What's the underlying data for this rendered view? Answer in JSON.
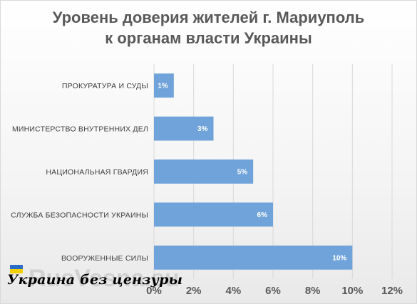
{
  "title_lines": [
    "Уровень доверия жителей г. Мариуполь",
    "к органам власти Украины"
  ],
  "chart_data": {
    "type": "bar",
    "orientation": "horizontal",
    "categories": [
      "ПРОКУРАТУРА И СУДЫ",
      "МИНИСТЕРСТВО ВНУТРЕННИХ ДЕЛ",
      "НАЦИОНАЛЬНАЯ ГВАРДИЯ",
      "СЛУЖБА БЕЗОПАСНОСТИ УКРАИНЫ",
      "ВООРУЖЕННЫЕ СИЛЫ"
    ],
    "values": [
      1,
      3,
      5,
      6,
      10
    ],
    "data_labels": [
      "1%",
      "3%",
      "5%",
      "6%",
      "10%"
    ],
    "xlim": [
      0,
      12
    ],
    "xticks": [
      "0%",
      "2%",
      "4%",
      "6%",
      "8%",
      "10%",
      "12%"
    ],
    "grid": true,
    "bar_color": "#6fa3d9",
    "grid_color": "#d9d9d9"
  },
  "watermark": "RusVesna.su",
  "logo": {
    "text": "Украина без цензуры",
    "flag_colors": [
      "#2a6cc7",
      "#f5d000"
    ]
  }
}
